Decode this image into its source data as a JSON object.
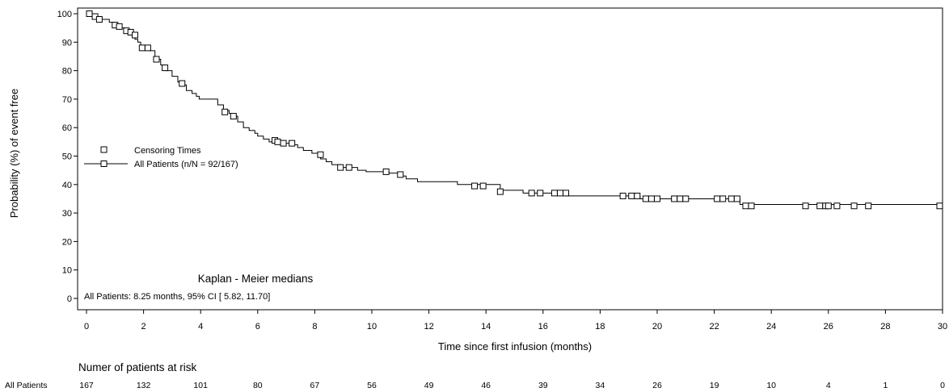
{
  "chart_data": {
    "type": "line",
    "subtype": "kaplan-meier",
    "xlabel": "Time since first infusion (months)",
    "ylabel": "Probability (%) of event free",
    "xlim": [
      0,
      30
    ],
    "ylim": [
      0,
      100
    ],
    "xticks": [
      0,
      2,
      4,
      6,
      8,
      10,
      12,
      14,
      16,
      18,
      20,
      22,
      24,
      26,
      28,
      30
    ],
    "yticks": [
      0,
      10,
      20,
      30,
      40,
      50,
      60,
      70,
      80,
      90,
      100
    ],
    "grid": false,
    "legend": {
      "placement": "middle-left",
      "entries": [
        "Censoring Times",
        "All Patients (n/N = 92/167)"
      ]
    },
    "annotation": {
      "title": "Kaplan - Meier medians",
      "text": "All Patients: 8.25 months, 95% CI [ 5.82, 11.70]"
    },
    "series": [
      {
        "name": "All Patients (n/N = 92/167)",
        "steps": [
          [
            0,
            100
          ],
          [
            0.3,
            99
          ],
          [
            0.5,
            98
          ],
          [
            0.8,
            97
          ],
          [
            1.0,
            96
          ],
          [
            1.2,
            95
          ],
          [
            1.35,
            94
          ],
          [
            1.5,
            93
          ],
          [
            1.7,
            91
          ],
          [
            1.8,
            90
          ],
          [
            1.9,
            88
          ],
          [
            2.2,
            87
          ],
          [
            2.4,
            84
          ],
          [
            2.6,
            82
          ],
          [
            2.75,
            80
          ],
          [
            3.0,
            78
          ],
          [
            3.2,
            76
          ],
          [
            3.4,
            75
          ],
          [
            3.5,
            73
          ],
          [
            3.7,
            72
          ],
          [
            3.85,
            71
          ],
          [
            3.95,
            70
          ],
          [
            4.6,
            68
          ],
          [
            4.8,
            66
          ],
          [
            5.0,
            65
          ],
          [
            5.1,
            64
          ],
          [
            5.3,
            62
          ],
          [
            5.5,
            60
          ],
          [
            5.7,
            59
          ],
          [
            5.9,
            58
          ],
          [
            6.0,
            57
          ],
          [
            6.2,
            56
          ],
          [
            6.4,
            55
          ],
          [
            6.8,
            54.5
          ],
          [
            7.2,
            54
          ],
          [
            7.4,
            53
          ],
          [
            7.6,
            52
          ],
          [
            7.9,
            51
          ],
          [
            8.2,
            49
          ],
          [
            8.4,
            48
          ],
          [
            8.6,
            47
          ],
          [
            8.9,
            46
          ],
          [
            9.5,
            45
          ],
          [
            9.8,
            44.5
          ],
          [
            10.6,
            44
          ],
          [
            11.0,
            43
          ],
          [
            11.2,
            42
          ],
          [
            11.6,
            41
          ],
          [
            13.0,
            40
          ],
          [
            14.5,
            38
          ],
          [
            15.3,
            37
          ],
          [
            16.8,
            36
          ],
          [
            18.8,
            36
          ],
          [
            19.4,
            35
          ],
          [
            21.0,
            35
          ],
          [
            22.4,
            35
          ],
          [
            22.9,
            33
          ],
          [
            30.0,
            32.5
          ]
        ],
        "censor": [
          [
            0.1,
            100
          ],
          [
            0.3,
            99
          ],
          [
            0.45,
            98
          ],
          [
            1.0,
            96
          ],
          [
            1.15,
            95.5
          ],
          [
            1.4,
            94
          ],
          [
            1.55,
            93.5
          ],
          [
            1.7,
            92.5
          ],
          [
            1.95,
            88
          ],
          [
            2.15,
            88
          ],
          [
            2.45,
            84
          ],
          [
            2.75,
            81
          ],
          [
            3.35,
            75.5
          ],
          [
            4.85,
            65.5
          ],
          [
            5.15,
            64
          ],
          [
            6.6,
            55.5
          ],
          [
            6.7,
            55
          ],
          [
            6.9,
            54.5
          ],
          [
            7.2,
            54.5
          ],
          [
            8.2,
            50.5
          ],
          [
            8.9,
            46
          ],
          [
            9.2,
            46
          ],
          [
            10.5,
            44.5
          ],
          [
            11.0,
            43.5
          ],
          [
            13.6,
            39.5
          ],
          [
            13.9,
            39.5
          ],
          [
            14.5,
            37.5
          ],
          [
            15.6,
            37
          ],
          [
            15.9,
            37
          ],
          [
            16.4,
            37
          ],
          [
            16.6,
            37
          ],
          [
            16.8,
            37
          ],
          [
            18.8,
            36
          ],
          [
            19.1,
            36
          ],
          [
            19.3,
            36
          ],
          [
            19.6,
            35
          ],
          [
            19.8,
            35
          ],
          [
            20.0,
            35
          ],
          [
            20.6,
            35
          ],
          [
            20.8,
            35
          ],
          [
            21.0,
            35
          ],
          [
            22.1,
            35
          ],
          [
            22.3,
            35
          ],
          [
            22.6,
            35
          ],
          [
            22.8,
            35
          ],
          [
            23.1,
            32.5
          ],
          [
            23.3,
            32.5
          ],
          [
            25.2,
            32.5
          ],
          [
            25.7,
            32.5
          ],
          [
            25.9,
            32.5
          ],
          [
            26.0,
            32.5
          ],
          [
            26.3,
            32.5
          ],
          [
            26.9,
            32.5
          ],
          [
            27.4,
            32.5
          ],
          [
            29.9,
            32.5
          ]
        ]
      }
    ],
    "risk_table": {
      "title": "Numer of patients at risk",
      "row_label": "All Patients",
      "times": [
        0,
        2,
        4,
        6,
        8,
        10,
        12,
        14,
        16,
        18,
        20,
        22,
        24,
        26,
        28,
        30
      ],
      "values": [
        "167",
        "132",
        "101",
        "80",
        "67",
        "56",
        "49",
        "46",
        "39",
        "34",
        "26",
        "19",
        "10",
        "4",
        "1",
        "0"
      ]
    }
  }
}
